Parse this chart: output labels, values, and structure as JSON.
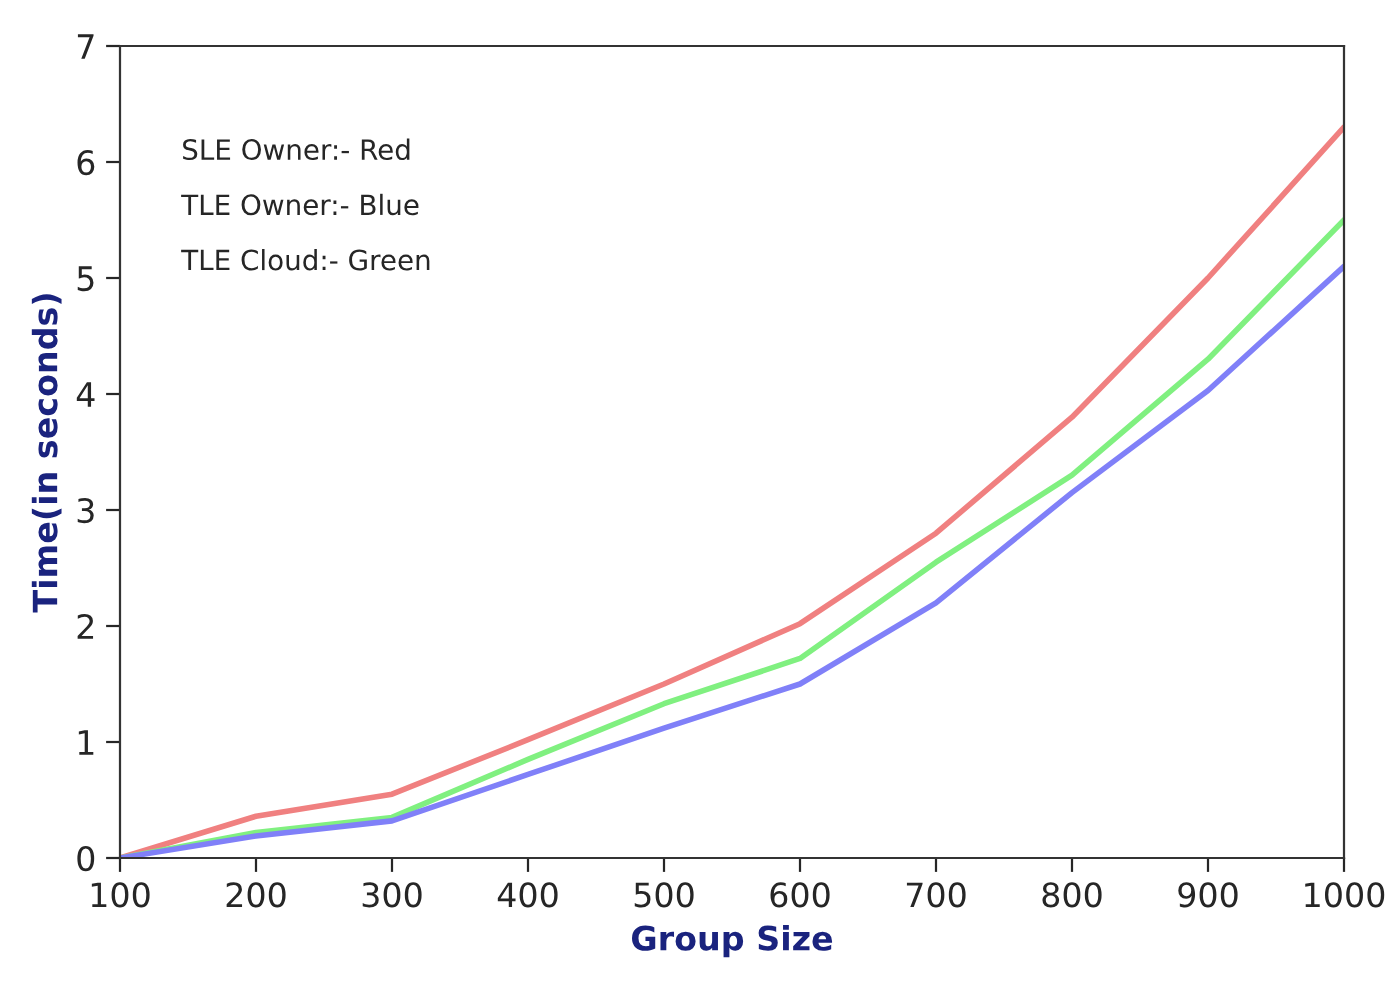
{
  "chart_data": {
    "type": "line",
    "xlabel": "Group Size",
    "ylabel": "Time(in seconds)",
    "x": [
      100,
      200,
      300,
      400,
      500,
      600,
      700,
      800,
      900,
      1000
    ],
    "series": [
      {
        "color": "#f08080",
        "values": [
          0,
          0.36,
          0.55,
          1.02,
          1.5,
          2.02,
          2.8,
          3.8,
          5.0,
          6.3
        ]
      },
      {
        "color": "#80f080",
        "values": [
          0,
          0.22,
          0.35,
          0.85,
          1.33,
          1.72,
          2.55,
          3.3,
          4.3,
          5.5
        ]
      },
      {
        "color": "#8080f8",
        "values": [
          0,
          0.19,
          0.32,
          0.72,
          1.12,
          1.5,
          2.2,
          3.15,
          4.03,
          5.1
        ]
      }
    ],
    "xlim": [
      100,
      1000
    ],
    "ylim": [
      0,
      7
    ],
    "xticks": [
      100,
      200,
      300,
      400,
      500,
      600,
      700,
      800,
      900,
      1000
    ],
    "yticks": [
      0,
      1,
      2,
      3,
      4,
      5,
      6,
      7
    ],
    "annotations": [
      "SLE Owner:- Red",
      "TLE Owner:- Blue",
      "TLE Cloud:- Green"
    ],
    "grid": false
  }
}
